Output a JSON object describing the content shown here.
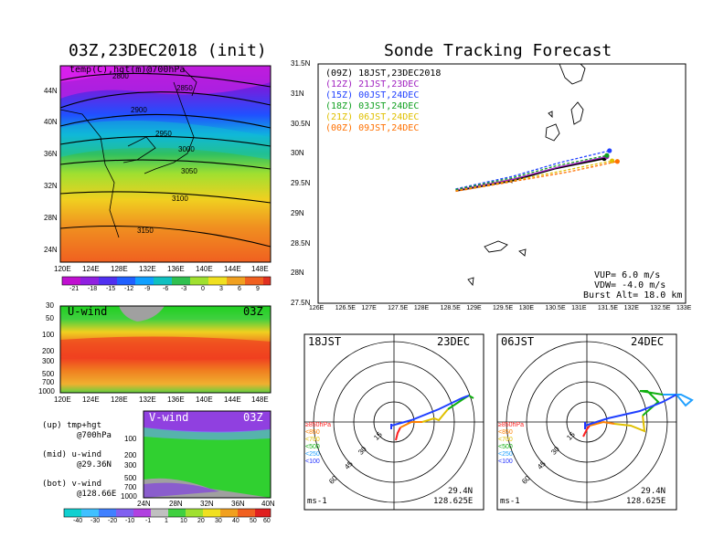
{
  "left": {
    "title": "03Z,23DEC2018 (init)",
    "map": {
      "label": "temp(C),hgt(m)@700hPa",
      "lon_ticks": [
        "120E",
        "124E",
        "128E",
        "132E",
        "136E",
        "140E",
        "144E",
        "148E"
      ],
      "lat_ticks": [
        "44N",
        "40N",
        "36N",
        "32N",
        "28N",
        "24N"
      ],
      "contours": [
        "2850",
        "2800",
        "2900",
        "2950",
        "3000",
        "3050",
        "3100",
        "3150"
      ]
    },
    "temp_bar": {
      "labels": [
        "-21",
        "-18",
        "-15",
        "-12",
        "-9",
        "-6",
        "-3",
        "0",
        "3",
        "6",
        "9"
      ]
    },
    "u_panel": {
      "label": "U-wind",
      "time": "03Z",
      "p_ticks": [
        "30",
        "50",
        "100",
        "200",
        "300",
        "500",
        "700",
        "1000"
      ],
      "lon_ticks": [
        "120E",
        "124E",
        "128E",
        "132E",
        "136E",
        "140E",
        "144E",
        "148E"
      ]
    },
    "v_panel": {
      "label": "V-wind",
      "time": "03Z",
      "p_ticks": [
        "100",
        "200",
        "300",
        "500",
        "700",
        "1000"
      ],
      "lat_ticks": [
        "24N",
        "28N",
        "32N",
        "36N",
        "40N"
      ]
    },
    "notes": [
      {
        "a": "(up) tmp+hgt",
        "b": "@700hPa"
      },
      {
        "a": "(mid) u-wind",
        "b": "@29.36N"
      },
      {
        "a": "(bot) v-wind",
        "b": "@128.66E"
      }
    ],
    "wind_bar": {
      "labels": [
        "-40",
        "-30",
        "-20",
        "-10",
        "-1",
        "1",
        "10",
        "20",
        "30",
        "40",
        "50",
        "60"
      ]
    }
  },
  "right": {
    "title": "Sonde Tracking Forecast",
    "legend": [
      {
        "text": "(09Z)  18JST,23DEC2018",
        "color": "#000000"
      },
      {
        "text": "(12Z)  21JST,23DEC",
        "color": "#a020c0"
      },
      {
        "text": "(15Z)  00JST,24DEC",
        "color": "#2040ff"
      },
      {
        "text": "(18Z)  03JST,24DEC",
        "color": "#10a020"
      },
      {
        "text": "(21Z)  06JST,24DEC",
        "color": "#e0c000"
      },
      {
        "text": "(00Z)  09JST,24DEC",
        "color": "#ff7000"
      }
    ],
    "params": [
      {
        "k": "VUP=",
        "v": "6.0 m/s"
      },
      {
        "k": "VDW=",
        "v": "-4.0 m/s"
      },
      {
        "k": "Burst Alt=",
        "v": "18.0 km"
      }
    ],
    "hodo_left": {
      "jst": "18JST",
      "date": "23DEC",
      "lat": "29.4N",
      "lon": "128.625E",
      "unit": "ms-1"
    },
    "hodo_right": {
      "jst": "06JST",
      "date": "24DEC",
      "lat": "29.4N",
      "lon": "128.625E",
      "unit": "ms-1"
    },
    "hodo_rings": [
      "15",
      "30",
      "45",
      "60"
    ],
    "hodo_levels": [
      {
        "text": "≥850hPa",
        "color": "#ff2020"
      },
      {
        "text": "<850",
        "color": "#ff8000"
      },
      {
        "text": "<700",
        "color": "#e0c000"
      },
      {
        "text": "<500",
        "color": "#10b010"
      },
      {
        "text": "<250",
        "color": "#20a0ff"
      },
      {
        "text": "<100",
        "color": "#2030ff"
      }
    ]
  },
  "chart_data": [
    {
      "type": "line",
      "title": "Sonde Tracking Forecast",
      "xticks": [
        "126E",
        "126.5E",
        "127E",
        "127.5E",
        "128E",
        "128.5E",
        "129E",
        "129.5E",
        "130E",
        "130.5E",
        "131E",
        "131.5E",
        "132E",
        "132.5E",
        "133E"
      ],
      "yticks": [
        "31.5N",
        "31N",
        "30.5N",
        "30N",
        "29.5N",
        "29N",
        "28.5N",
        "28N",
        "27.5N"
      ],
      "xlim": [
        126,
        133
      ],
      "ylim": [
        27.5,
        31.5
      ],
      "series": [
        {
          "name": "(09Z)  18JST,23DEC2018",
          "color": "#000000",
          "x": [
            128.62,
            129.7,
            130.5,
            131.45
          ],
          "y": [
            29.38,
            29.55,
            29.75,
            29.92
          ]
        },
        {
          "name": "(12Z)  21JST,23DEC",
          "color": "#a020c0",
          "x": [
            128.62,
            129.7,
            130.6,
            131.5
          ],
          "y": [
            29.39,
            29.57,
            29.78,
            29.95
          ]
        },
        {
          "name": "(15Z)  00JST,24DEC",
          "color": "#2040ff",
          "x": [
            128.62,
            129.7,
            130.6,
            131.55
          ],
          "y": [
            29.41,
            29.62,
            29.85,
            30.05
          ]
        },
        {
          "name": "(18Z)  03JST,24DEC",
          "color": "#10a020",
          "x": [
            128.62,
            129.72,
            130.55,
            131.5
          ],
          "y": [
            29.4,
            29.6,
            29.8,
            29.97
          ]
        },
        {
          "name": "(21Z)  06JST,24DEC",
          "color": "#e0c000",
          "x": [
            128.62,
            129.7,
            130.7,
            131.6
          ],
          "y": [
            29.38,
            29.55,
            29.72,
            29.88
          ]
        },
        {
          "name": "(00Z)  09JST,24DEC",
          "color": "#ff7000",
          "x": [
            128.62,
            129.75,
            130.8,
            131.7
          ],
          "y": [
            29.37,
            29.54,
            29.7,
            29.87
          ]
        }
      ]
    }
  ]
}
